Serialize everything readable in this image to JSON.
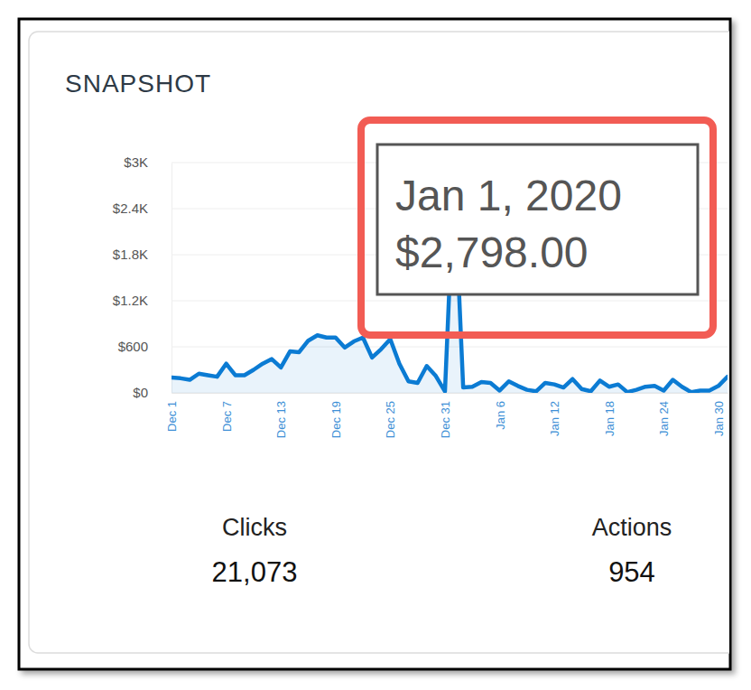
{
  "chart_data": {
    "type": "line",
    "title": "SNAPSHOT",
    "categories": [
      "Dec 1",
      null,
      null,
      null,
      null,
      null,
      "Dec 7",
      null,
      null,
      null,
      null,
      null,
      "Dec 13",
      null,
      null,
      null,
      null,
      null,
      "Dec 19",
      null,
      null,
      null,
      null,
      null,
      "Dec 25",
      null,
      null,
      null,
      null,
      null,
      "Dec 31",
      null,
      null,
      null,
      null,
      null,
      "Jan 6",
      null,
      null,
      null,
      null,
      null,
      "Jan 12",
      null,
      null,
      null,
      null,
      null,
      "Jan 18",
      null,
      null,
      null,
      null,
      null,
      "Jan 24",
      null,
      null,
      null,
      null,
      null,
      "Jan 30",
      null
    ],
    "values": [
      200,
      190,
      170,
      250,
      230,
      210,
      380,
      230,
      230,
      300,
      380,
      440,
      330,
      540,
      530,
      680,
      750,
      720,
      720,
      590,
      670,
      720,
      460,
      570,
      700,
      380,
      150,
      130,
      350,
      220,
      20,
      2798,
      70,
      80,
      140,
      130,
      30,
      150,
      90,
      40,
      20,
      130,
      110,
      70,
      180,
      50,
      20,
      160,
      80,
      110,
      10,
      40,
      80,
      90,
      30,
      170,
      80,
      10,
      30,
      30,
      90,
      210
    ],
    "color": "#0b7bd3",
    "ylim": [
      0,
      3000
    ],
    "yticks": [
      {
        "value": 0,
        "label": "$0"
      },
      {
        "value": 600,
        "label": "$600"
      },
      {
        "value": 1200,
        "label": "$1.2K"
      },
      {
        "value": 1800,
        "label": "$1.8K"
      },
      {
        "value": 2400,
        "label": "$2.4K"
      },
      {
        "value": 3000,
        "label": "$3K"
      }
    ],
    "grid": true,
    "tooltip": {
      "title": "Jan 1, 2020",
      "label": "$2,798.00"
    }
  },
  "stats": [
    {
      "label": "Clicks",
      "value": "21,073"
    },
    {
      "label": "Actions",
      "value": "954"
    }
  ]
}
